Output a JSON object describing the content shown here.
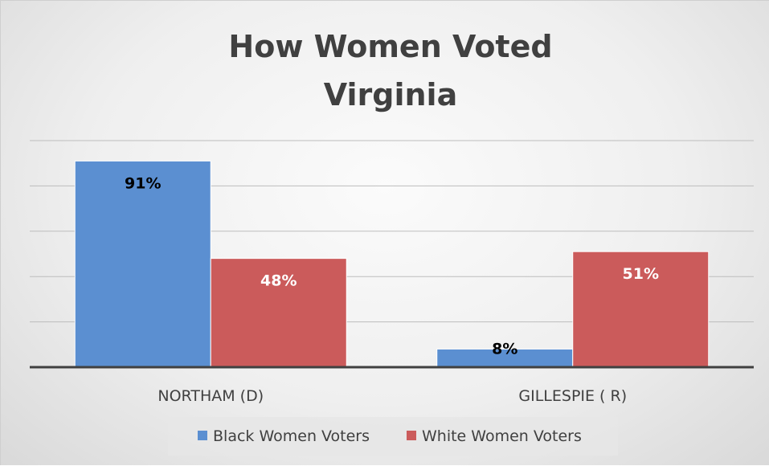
{
  "chart_data": {
    "type": "bar",
    "title_lines": [
      "How Women Voted",
      "Virginia"
    ],
    "categories": [
      "NORTHAM (D)",
      "GILLESPIE ( R)"
    ],
    "series": [
      {
        "name": "Black Women Voters",
        "values": [
          91,
          8
        ],
        "labels": [
          "91%",
          "8%"
        ],
        "color": "#5b8fd1",
        "label_color": "#000000"
      },
      {
        "name": "White Women Voters",
        "values": [
          48,
          51
        ],
        "labels": [
          "48%",
          "51%"
        ],
        "color": "#cb5b5b",
        "label_color": "#ffffff"
      }
    ],
    "ylim": [
      0,
      100
    ],
    "grid": true,
    "legend_position": "bottom"
  }
}
